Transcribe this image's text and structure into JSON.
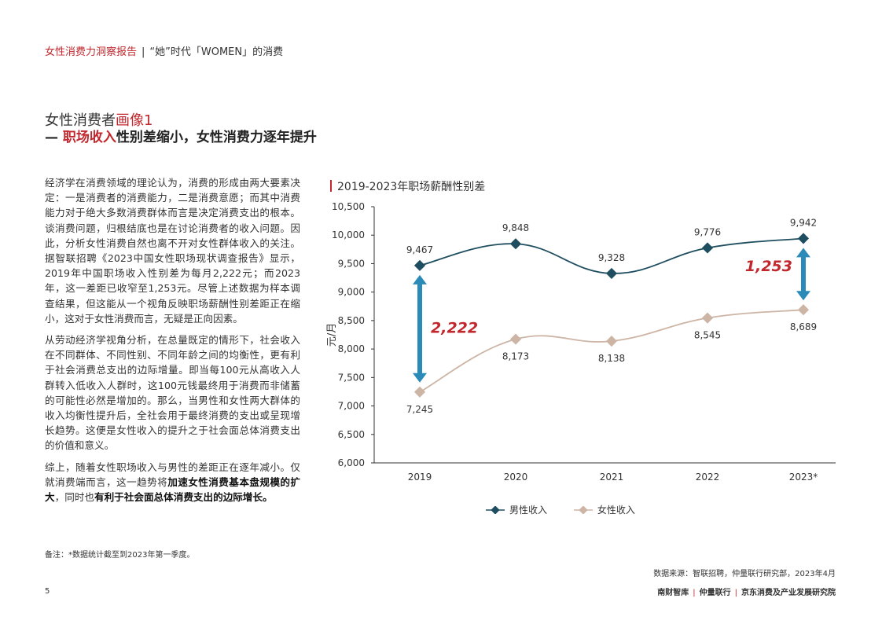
{
  "header": {
    "report": "女性消费力洞察报告",
    "separator": "|",
    "subtitle": "“她”时代「WOMEN」的消费"
  },
  "section": {
    "title_prefix": "女性消费者",
    "title_highlight": "画像1",
    "subtitle_dash": "— ",
    "subtitle_highlight": "职场收入",
    "subtitle_rest": "性别差缩小，女性消费力逐年提升"
  },
  "body": {
    "p1": "经济学在消费领域的理论认为，消费的形成由两大要素决定：一是消费者的消费能力，二是消费意愿；而其中消费能力对于绝大多数消费群体而言是决定消费支出的根本。谈消费问题，归根结底也是在讨论消费者的收入问题。因此，分析女性消费自然也离不开对女性群体收入的关注。据智联招聘《2023中国女性职场现状调查报告》显示，2019年中国职场收入性别差为每月2,222元；而2023年，这一差距已收窄至1,253元。尽管上述数据为样本调查结果，但这能从一个视角反映职场薪酬性别差距正在缩小，这对于女性消费而言，无疑是正向因素。",
    "p2": "从劳动经济学视角分析，在总量既定的情形下，社会收入在不同群体、不同性别、不同年龄之间的均衡性，更有利于社会消费总支出的边际增量。即当每100元从高收入人群转入低收入人群时，这100元钱最终用于消费而非储蓄的可能性必然是增加的。那么，当男性和女性两大群体的收入均衡性提升后，全社会用于最终消费的支出或呈现增长趋势。这便是女性收入的提升之于社会面总体消费支出的价值和意义。",
    "p3_a": "综上，随着女性职场收入与男性的差距正在逐年减小。仅就消费端而言，这一趋势将",
    "p3_b": "加速女性消费基本盘规模的扩大",
    "p3_c": "，同时也",
    "p3_d": "有利于社会面总体消费支出的边际增长。"
  },
  "note": "备注：*数据统计截至到2023年第一季度。",
  "source": "数据来源：智联招聘，仲量联行研究部，2023年4月",
  "page_number": "5",
  "footer": {
    "org1": "南财智库",
    "org2": "仲量联行",
    "org3": "京东消费及产业发展研究院",
    "bar": "|"
  },
  "colors": {
    "accent": "#c1272d",
    "male": "#1e4e5f",
    "female": "#cdb5a6",
    "arrow": "#2a8ab8",
    "gap_label": "#c1272d"
  },
  "chart_data": {
    "type": "line",
    "title": "2019-2023年职场薪酬性别差",
    "ylabel": "元/月",
    "xlabel": "",
    "categories": [
      "2019",
      "2020",
      "2021",
      "2022",
      "2023*"
    ],
    "ylim": [
      6000,
      10500
    ],
    "yticks": [
      6000,
      6500,
      7000,
      7500,
      8000,
      8500,
      9000,
      9500,
      10000,
      10500
    ],
    "ytick_labels": [
      "6,000",
      "6,500",
      "7,000",
      "7,500",
      "8,000",
      "8,500",
      "9,000",
      "9,500",
      "10,000",
      "10,500"
    ],
    "series": [
      {
        "name": "男性收入",
        "values": [
          9467,
          9848,
          9328,
          9776,
          9942
        ],
        "labels": [
          "9,467",
          "9,848",
          "9,328",
          "9,776",
          "9,942"
        ]
      },
      {
        "name": "女性收入",
        "values": [
          7245,
          8173,
          8138,
          8545,
          8689
        ],
        "labels": [
          "7,245",
          "8,173",
          "8,138",
          "8,545",
          "8,689"
        ]
      }
    ],
    "annotations": [
      {
        "category": "2019",
        "label": "2,222"
      },
      {
        "category": "2023*",
        "label": "1,253"
      }
    ],
    "grid": false,
    "legend": "bottom"
  }
}
